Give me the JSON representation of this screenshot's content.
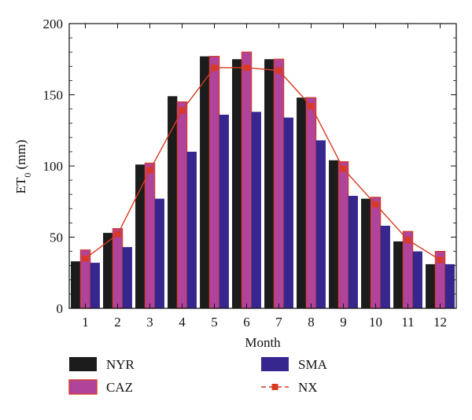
{
  "chart_data": {
    "type": "bar",
    "xlabel": "Month",
    "ylabel_main": "ET",
    "ylabel_sub": "0",
    "ylabel_unit": " (mm)",
    "ylim": [
      0,
      200
    ],
    "yticks": [
      0,
      50,
      100,
      150,
      200
    ],
    "categories": [
      "1",
      "2",
      "3",
      "4",
      "5",
      "6",
      "7",
      "8",
      "9",
      "10",
      "11",
      "12"
    ],
    "grid": false,
    "legend_position": "bottom",
    "series": [
      {
        "name": "NYR",
        "kind": "bar",
        "color": "#1c1c1c",
        "values": [
          33,
          53,
          101,
          149,
          177,
          175,
          175,
          148,
          104,
          77,
          47,
          31
        ]
      },
      {
        "name": "CAZ",
        "kind": "bar",
        "color": "#b0439a",
        "edge": "#d23c2a",
        "values": [
          41,
          56,
          102,
          145,
          177,
          180,
          175,
          148,
          103,
          78,
          54,
          40
        ]
      },
      {
        "name": "SMA",
        "kind": "bar",
        "color": "#36278e",
        "values": [
          32,
          43,
          77,
          110,
          136,
          138,
          134,
          118,
          79,
          58,
          40,
          31
        ]
      },
      {
        "name": "NX",
        "kind": "line",
        "color": "#d93a21",
        "values": [
          35,
          52,
          97,
          139,
          169,
          169,
          167,
          142,
          98,
          73,
          48,
          34
        ]
      }
    ]
  }
}
